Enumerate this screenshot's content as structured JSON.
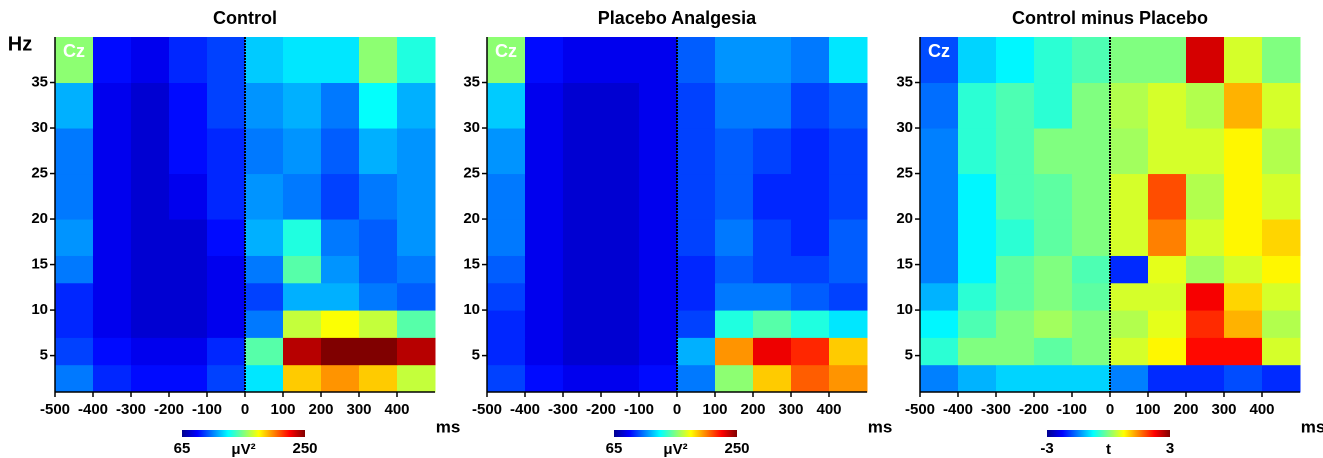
{
  "chart_data": [
    {
      "type": "heatmap",
      "title": "Control",
      "label": "Cz",
      "ylabel": "Hz",
      "xlabel": "ms",
      "colormap": "jet",
      "x": [
        -500,
        -400,
        -300,
        -200,
        -100,
        0,
        100,
        200,
        300,
        400,
        500
      ],
      "y": [
        1,
        4,
        7,
        10,
        13,
        16,
        20,
        25,
        30,
        35,
        40
      ],
      "xlim": [
        -500,
        500
      ],
      "ylim": [
        1,
        40
      ],
      "xticks": [
        -500,
        -400,
        -300,
        -200,
        -100,
        0,
        100,
        200,
        300,
        400
      ],
      "yticks": [
        5,
        10,
        15,
        20,
        25,
        30,
        35
      ],
      "vline": 0,
      "clim": [
        65,
        250
      ],
      "cticks": [
        65,
        250
      ],
      "clabel": "μV²",
      "z": [
        [
          110,
          95,
          90,
          90,
          100,
          130,
          190,
          200,
          190,
          170
        ],
        [
          100,
          90,
          85,
          85,
          95,
          150,
          240,
          250,
          250,
          240
        ],
        [
          95,
          85,
          80,
          80,
          85,
          110,
          170,
          180,
          170,
          150
        ],
        [
          95,
          85,
          80,
          80,
          85,
          100,
          120,
          120,
          110,
          105
        ],
        [
          110,
          85,
          80,
          80,
          85,
          110,
          150,
          115,
          105,
          110
        ],
        [
          115,
          85,
          80,
          80,
          90,
          120,
          140,
          110,
          105,
          115
        ],
        [
          110,
          85,
          80,
          85,
          95,
          115,
          110,
          100,
          110,
          115
        ],
        [
          110,
          85,
          80,
          90,
          95,
          110,
          115,
          105,
          120,
          115
        ],
        [
          120,
          85,
          80,
          90,
          100,
          115,
          120,
          110,
          135,
          120
        ],
        [
          160,
          90,
          85,
          95,
          100,
          125,
          130,
          130,
          160,
          140
        ]
      ]
    },
    {
      "type": "heatmap",
      "title": "Placebo Analgesia",
      "label": "Cz",
      "xlabel": "ms",
      "colormap": "jet",
      "x": [
        -500,
        -400,
        -300,
        -200,
        -100,
        0,
        100,
        200,
        300,
        400,
        500
      ],
      "y": [
        1,
        4,
        7,
        10,
        13,
        16,
        20,
        25,
        30,
        35,
        40
      ],
      "xlim": [
        -500,
        500
      ],
      "ylim": [
        1,
        40
      ],
      "xticks": [
        -500,
        -400,
        -300,
        -200,
        -100,
        0,
        100,
        200,
        300,
        400
      ],
      "yticks": [
        5,
        10,
        15,
        20,
        25,
        30,
        35
      ],
      "vline": 0,
      "clim": [
        65,
        250
      ],
      "cticks": [
        65,
        250
      ],
      "clabel": "μV²",
      "z": [
        [
          100,
          90,
          85,
          85,
          90,
          110,
          160,
          190,
          210,
          200
        ],
        [
          95,
          85,
          80,
          80,
          85,
          120,
          200,
          230,
          220,
          190
        ],
        [
          95,
          85,
          80,
          80,
          85,
          100,
          140,
          150,
          140,
          130
        ],
        [
          100,
          85,
          80,
          80,
          85,
          95,
          110,
          110,
          105,
          100
        ],
        [
          105,
          85,
          80,
          80,
          85,
          95,
          105,
          100,
          100,
          105
        ],
        [
          110,
          85,
          80,
          80,
          85,
          100,
          110,
          100,
          95,
          105
        ],
        [
          110,
          85,
          80,
          80,
          85,
          100,
          105,
          95,
          95,
          100
        ],
        [
          115,
          85,
          80,
          80,
          85,
          100,
          105,
          100,
          95,
          100
        ],
        [
          125,
          85,
          80,
          80,
          85,
          100,
          110,
          110,
          100,
          105
        ],
        [
          160,
          90,
          85,
          85,
          85,
          105,
          115,
          115,
          110,
          130
        ]
      ]
    },
    {
      "type": "heatmap",
      "title": "Control minus Placebo",
      "label": "Cz",
      "xlabel": "ms",
      "colormap": "jet",
      "x": [
        -500,
        -400,
        -300,
        -200,
        -100,
        0,
        100,
        200,
        300,
        400,
        500
      ],
      "y": [
        1,
        4,
        7,
        10,
        13,
        16,
        20,
        25,
        30,
        35,
        40
      ],
      "xlim": [
        -500,
        500
      ],
      "ylim": [
        1,
        40
      ],
      "xticks": [
        -500,
        -400,
        -300,
        -200,
        -100,
        0,
        100,
        200,
        300,
        400
      ],
      "yticks": [
        5,
        10,
        15,
        20,
        25,
        30,
        35
      ],
      "vline": 0,
      "clim": [
        -3,
        3
      ],
      "cticks": [
        -3,
        3
      ],
      "clabel": "t",
      "z": [
        [
          -1.5,
          -1.2,
          -1,
          -1,
          -1,
          -1.5,
          -2,
          -2,
          -1.8,
          -2
        ],
        [
          -0.5,
          0,
          0,
          -0.2,
          0,
          0.5,
          0.8,
          2.2,
          2.2,
          0.5
        ],
        [
          -0.8,
          -0.3,
          0,
          0.2,
          0,
          0.3,
          0.6,
          2,
          1.2,
          0.3
        ],
        [
          -1.2,
          -0.5,
          -0.2,
          0,
          -0.2,
          0.5,
          0.5,
          2.3,
          1,
          0.5
        ],
        [
          -1.5,
          -0.8,
          -0.2,
          0,
          -0.3,
          -2,
          0.6,
          0.2,
          0.5,
          0.8
        ],
        [
          -1.5,
          -0.8,
          -0.5,
          -0.2,
          0,
          0.5,
          1.5,
          0.5,
          0.8,
          1
        ],
        [
          -1.5,
          -0.8,
          -0.3,
          -0.2,
          0,
          0.5,
          1.8,
          0.3,
          0.8,
          0.5
        ],
        [
          -1.5,
          -0.5,
          -0.3,
          0,
          0,
          0.2,
          0.5,
          0.5,
          0.8,
          0.3
        ],
        [
          -1.6,
          -0.5,
          -0.3,
          -0.5,
          0,
          0.3,
          0.5,
          0.3,
          1.2,
          0.5
        ],
        [
          -1.8,
          -1,
          -0.8,
          -0.5,
          -0.3,
          0,
          0,
          2.5,
          0.5,
          0
        ]
      ]
    }
  ]
}
